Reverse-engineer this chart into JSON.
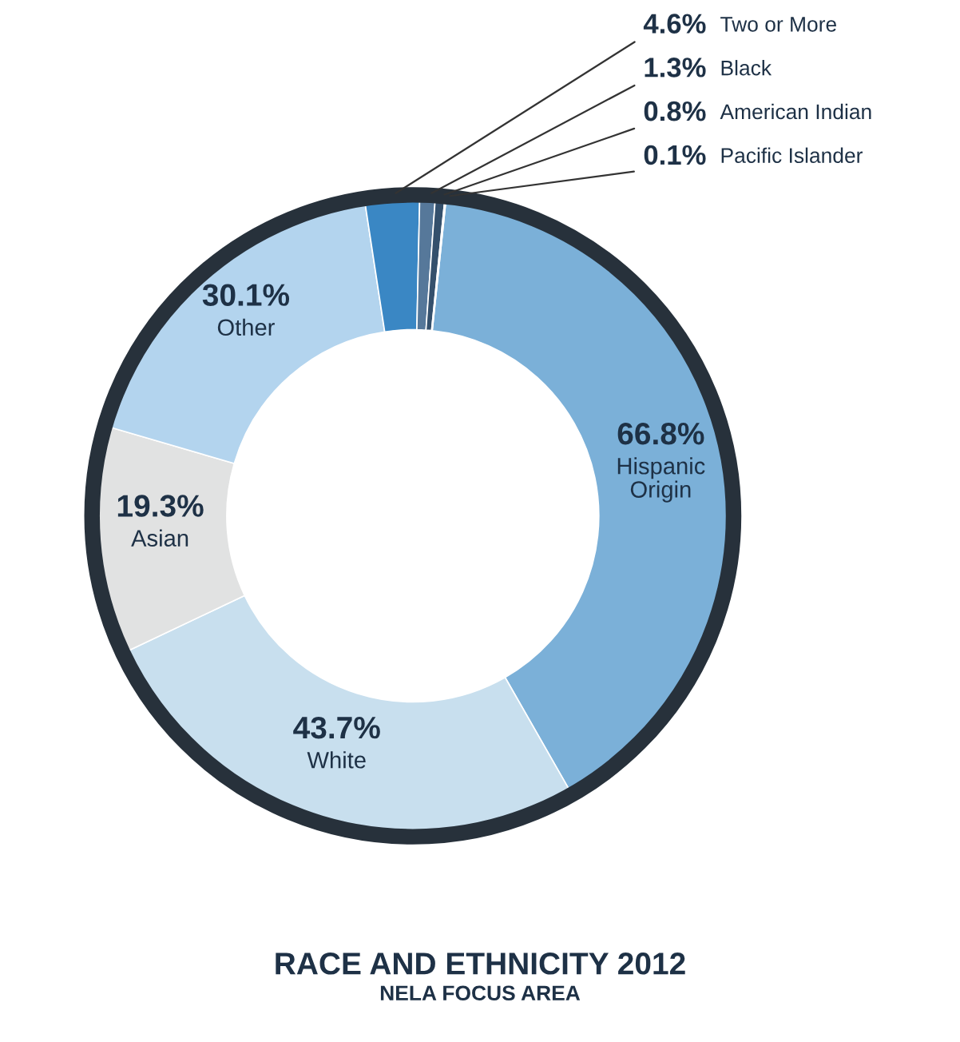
{
  "chart_data": {
    "type": "donut",
    "title": "RACE AND ETHNICITY 2012",
    "subtitle": "NELA FOCUS AREA",
    "categories": [
      "Hispanic\nOrigin",
      "White",
      "Asian",
      "Other",
      "Two or More",
      "Black",
      "American Indian",
      "Pacific Islander"
    ],
    "values": [
      66.8,
      43.7,
      19.3,
      30.1,
      4.6,
      1.3,
      0.8,
      0.1
    ],
    "value_labels": [
      "66.8%",
      "43.7%",
      "19.3%",
      "30.1%",
      "4.6%",
      "1.3%",
      "0.8%",
      "0.1%"
    ],
    "colors": [
      "#7bb0d8",
      "#c8dfee",
      "#e1e2e2",
      "#b3d4ee",
      "#3a87c4",
      "#56789a",
      "#34506c",
      "#1d2228"
    ],
    "legend": false
  }
}
